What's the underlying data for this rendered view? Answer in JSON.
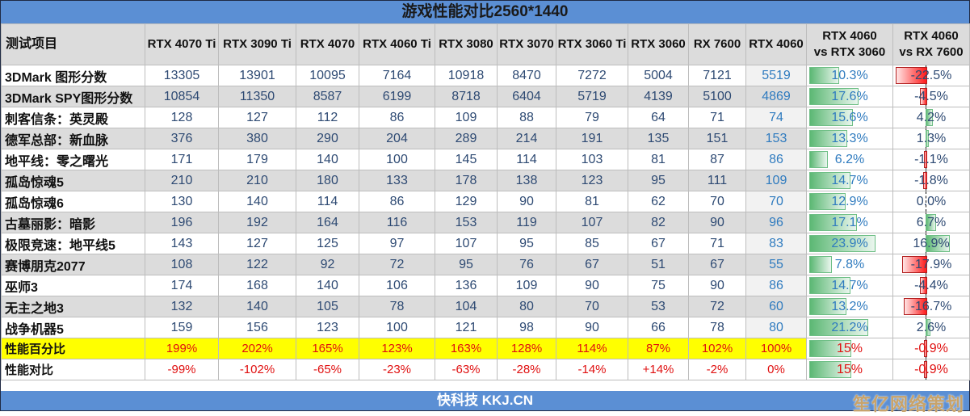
{
  "title": "游戏性能对比2560*1440",
  "footer": "快科技 KKJ.CN",
  "watermark": "笙亿网络策划",
  "header": {
    "first": "测试项目",
    "gpus": [
      "RTX 4070 Ti",
      "RTX 3090 Ti",
      "RTX 4070",
      "RTX 4060 Ti",
      "RTX 3080",
      "RTX 3070",
      "RTX 3060 Ti",
      "RTX 3060",
      "RX 7600",
      "RTX 4060"
    ],
    "cmp1_line1": "RTX 4060",
    "cmp1_line2": "vs RTX 3060",
    "cmp2_line1": "RTX 4060",
    "cmp2_line2": "vs RX 7600"
  },
  "rows": [
    {
      "label": "3DMark 图形分数",
      "v": [
        "13305",
        "13901",
        "10095",
        "7164",
        "10918",
        "8470",
        "7272",
        "5004",
        "7121",
        "5519"
      ],
      "c1": "10.3%",
      "c2": "-22.5%",
      "c1n": 10.3,
      "c2n": -22.5
    },
    {
      "label": "3DMark SPY图形分数",
      "v": [
        "10854",
        "11350",
        "8587",
        "6199",
        "8718",
        "6404",
        "5719",
        "4139",
        "5100",
        "4869"
      ],
      "c1": "17.6%",
      "c2": "-4.5%",
      "c1n": 17.6,
      "c2n": -4.5
    },
    {
      "label": "刺客信条：英灵殿",
      "v": [
        "128",
        "127",
        "112",
        "86",
        "109",
        "88",
        "79",
        "64",
        "71",
        "74"
      ],
      "c1": "15.6%",
      "c2": "4.2%",
      "c1n": 15.6,
      "c2n": 4.2
    },
    {
      "label": "德军总部：新血脉",
      "v": [
        "376",
        "380",
        "290",
        "204",
        "289",
        "214",
        "191",
        "135",
        "151",
        "153"
      ],
      "c1": "13.3%",
      "c2": "1.3%",
      "c1n": 13.3,
      "c2n": 1.3
    },
    {
      "label": "地平线：零之曙光",
      "v": [
        "171",
        "179",
        "140",
        "100",
        "145",
        "114",
        "103",
        "81",
        "87",
        "86"
      ],
      "c1": "6.2%",
      "c2": "-1.1%",
      "c1n": 6.2,
      "c2n": -1.1
    },
    {
      "label": "孤岛惊魂5",
      "v": [
        "210",
        "210",
        "180",
        "133",
        "178",
        "138",
        "123",
        "95",
        "111",
        "109"
      ],
      "c1": "14.7%",
      "c2": "-1.8%",
      "c1n": 14.7,
      "c2n": -1.8
    },
    {
      "label": "孤岛惊魂6",
      "v": [
        "130",
        "140",
        "114",
        "86",
        "129",
        "90",
        "81",
        "62",
        "70",
        "70"
      ],
      "c1": "12.9%",
      "c2": "0.0%",
      "c1n": 12.9,
      "c2n": 0.0
    },
    {
      "label": "古墓丽影：暗影",
      "v": [
        "196",
        "192",
        "164",
        "116",
        "153",
        "119",
        "107",
        "82",
        "90",
        "96"
      ],
      "c1": "17.1%",
      "c2": "6.7%",
      "c1n": 17.1,
      "c2n": 6.7
    },
    {
      "label": "极限竞速：地平线5",
      "v": [
        "143",
        "127",
        "125",
        "97",
        "107",
        "95",
        "85",
        "67",
        "71",
        "83"
      ],
      "c1": "23.9%",
      "c2": "16.9%",
      "c1n": 23.9,
      "c2n": 16.9
    },
    {
      "label": "赛博朋克2077",
      "v": [
        "108",
        "122",
        "92",
        "72",
        "95",
        "76",
        "67",
        "51",
        "67",
        "55"
      ],
      "c1": "7.8%",
      "c2": "-17.9%",
      "c1n": 7.8,
      "c2n": -17.9
    },
    {
      "label": "巫师3",
      "v": [
        "174",
        "168",
        "140",
        "106",
        "136",
        "109",
        "90",
        "75",
        "90",
        "86"
      ],
      "c1": "14.7%",
      "c2": "-4.4%",
      "c1n": 14.7,
      "c2n": -4.4
    },
    {
      "label": "无主之地3",
      "v": [
        "132",
        "140",
        "105",
        "78",
        "104",
        "80",
        "70",
        "53",
        "72",
        "60"
      ],
      "c1": "13.2%",
      "c2": "-16.7%",
      "c1n": 13.2,
      "c2n": -16.7
    },
    {
      "label": "战争机器5",
      "v": [
        "159",
        "156",
        "123",
        "100",
        "121",
        "98",
        "90",
        "66",
        "78",
        "80"
      ],
      "c1": "21.2%",
      "c2": "2.6%",
      "c1n": 21.2,
      "c2n": 2.6
    }
  ],
  "percent_row": {
    "label": "性能百分比",
    "v": [
      "199%",
      "202%",
      "165%",
      "123%",
      "163%",
      "128%",
      "114%",
      "87%",
      "102%",
      "100%"
    ],
    "c1": "15%",
    "c2": "-0.9%",
    "c1n": 15,
    "c2n": -0.9
  },
  "diff_row": {
    "label": "性能对比",
    "v": [
      "-99%",
      "-102%",
      "-65%",
      "-23%",
      "-63%",
      "-28%",
      "-14%",
      "+14%",
      "-2%",
      "0%"
    ],
    "c1": "15%",
    "c2": "-0.9%",
    "c1n": 15,
    "c2n": -0.9
  },
  "chart_data": {
    "type": "table",
    "title": "游戏性能对比2560*1440",
    "columns": [
      "测试项目",
      "RTX 4070 Ti",
      "RTX 3090 Ti",
      "RTX 4070",
      "RTX 4060 Ti",
      "RTX 3080",
      "RTX 3070",
      "RTX 3060 Ti",
      "RTX 3060",
      "RX 7600",
      "RTX 4060",
      "RTX 4060 vs RTX 3060",
      "RTX 4060 vs RX 7600"
    ],
    "categories": [
      "3DMark 图形分数",
      "3DMark SPY图形分数",
      "刺客信条：英灵殿",
      "德军总部：新血脉",
      "地平线：零之曙光",
      "孤岛惊魂5",
      "孤岛惊魂6",
      "古墓丽影：暗影",
      "极限竞速：地平线5",
      "赛博朋克2077",
      "巫师3",
      "无主之地3",
      "战争机器5",
      "性能百分比",
      "性能对比"
    ],
    "series": [
      {
        "name": "RTX 4070 Ti",
        "values": [
          13305,
          10854,
          128,
          376,
          171,
          210,
          130,
          196,
          143,
          108,
          174,
          132,
          159
        ]
      },
      {
        "name": "RTX 3090 Ti",
        "values": [
          13901,
          11350,
          127,
          380,
          179,
          210,
          140,
          192,
          127,
          122,
          168,
          140,
          156
        ]
      },
      {
        "name": "RTX 4070",
        "values": [
          10095,
          8587,
          112,
          290,
          140,
          180,
          114,
          164,
          125,
          92,
          140,
          105,
          123
        ]
      },
      {
        "name": "RTX 4060 Ti",
        "values": [
          7164,
          6199,
          86,
          204,
          100,
          133,
          86,
          116,
          97,
          72,
          106,
          78,
          100
        ]
      },
      {
        "name": "RTX 3080",
        "values": [
          10918,
          8718,
          109,
          289,
          145,
          178,
          129,
          153,
          107,
          95,
          136,
          104,
          121
        ]
      },
      {
        "name": "RTX 3070",
        "values": [
          8470,
          6404,
          88,
          214,
          114,
          138,
          90,
          119,
          95,
          76,
          109,
          80,
          98
        ]
      },
      {
        "name": "RTX 3060 Ti",
        "values": [
          7272,
          5719,
          79,
          191,
          103,
          123,
          81,
          107,
          85,
          67,
          90,
          70,
          90
        ]
      },
      {
        "name": "RTX 3060",
        "values": [
          5004,
          4139,
          64,
          135,
          81,
          95,
          62,
          82,
          67,
          51,
          75,
          53,
          66
        ]
      },
      {
        "name": "RX 7600",
        "values": [
          7121,
          5100,
          71,
          151,
          87,
          111,
          70,
          90,
          71,
          67,
          90,
          72,
          78
        ]
      },
      {
        "name": "RTX 4060",
        "values": [
          5519,
          4869,
          74,
          153,
          86,
          109,
          70,
          96,
          83,
          55,
          86,
          60,
          80
        ]
      },
      {
        "name": "RTX 4060 vs RTX 3060 (%)",
        "values": [
          10.3,
          17.6,
          15.6,
          13.3,
          6.2,
          14.7,
          12.9,
          17.1,
          23.9,
          7.8,
          14.7,
          13.2,
          21.2,
          15,
          15
        ]
      },
      {
        "name": "RTX 4060 vs RX 7600 (%)",
        "values": [
          -22.5,
          -4.5,
          4.2,
          1.3,
          -1.1,
          -1.8,
          0.0,
          6.7,
          16.9,
          -17.9,
          -4.4,
          -16.7,
          2.6,
          -0.9,
          -0.9
        ]
      }
    ],
    "performance_percent": {
      "RTX 4070 Ti": 199,
      "RTX 3090 Ti": 202,
      "RTX 4070": 165,
      "RTX 4060 Ti": 123,
      "RTX 3080": 163,
      "RTX 3070": 128,
      "RTX 3060 Ti": 114,
      "RTX 3060": 87,
      "RX 7600": 102,
      "RTX 4060": 100
    },
    "performance_diff": {
      "RTX 4070 Ti": "-99%",
      "RTX 3090 Ti": "-102%",
      "RTX 4070": "-65%",
      "RTX 4060 Ti": "-23%",
      "RTX 3080": "-63%",
      "RTX 3070": "-28%",
      "RTX 3060 Ti": "-14%",
      "RTX 3060": "+14%",
      "RX 7600": "-2%",
      "RTX 4060": "0%"
    }
  }
}
